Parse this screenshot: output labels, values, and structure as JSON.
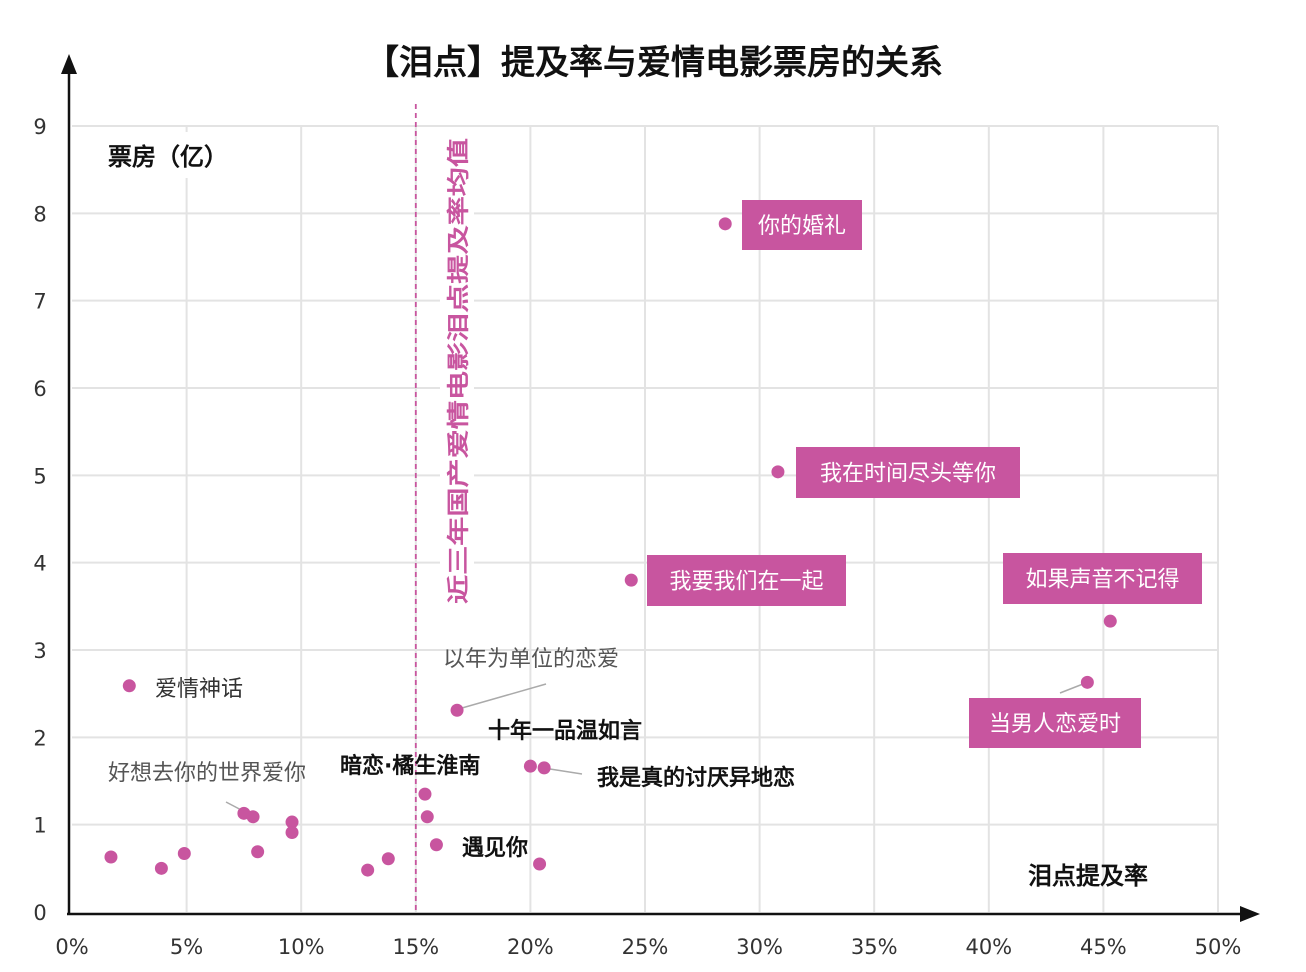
{
  "chart_data": {
    "type": "scatter",
    "title": "【泪点】提及率与爱情电影票房的关系",
    "xlabel": "泪点提及率",
    "ylabel": "票房（亿）",
    "xlim": [
      0,
      50
    ],
    "ylim": [
      0,
      9
    ],
    "x_ticks": [
      "0%",
      "5%",
      "10%",
      "15%",
      "20%",
      "25%",
      "30%",
      "35%",
      "40%",
      "45%",
      "50%"
    ],
    "y_ticks": [
      "0",
      "1",
      "2",
      "3",
      "4",
      "5",
      "6",
      "7",
      "8",
      "9"
    ],
    "grid": true,
    "mean_line": {
      "x": 15.0,
      "label": "近三年国产爱情电影泪点提及率均值"
    },
    "colors": {
      "point": "#c8559f",
      "label_box": "#c8559f",
      "mean_line": "#c8559f"
    },
    "points": [
      {
        "x": 28.5,
        "y": 7.88,
        "label": "你的婚礼"
      },
      {
        "x": 30.8,
        "y": 5.04,
        "label": "我在时间尽头等你"
      },
      {
        "x": 24.4,
        "y": 3.8,
        "label": "我要我们在一起"
      },
      {
        "x": 45.3,
        "y": 3.33,
        "label": "如果声音不记得"
      },
      {
        "x": 44.3,
        "y": 2.63,
        "label": "当男人恋爱时"
      },
      {
        "x": 2.5,
        "y": 2.59,
        "label": "爱情神话"
      },
      {
        "x": 16.8,
        "y": 2.31,
        "label": "以年为单位的恋爱"
      },
      {
        "x": 20.0,
        "y": 1.67,
        "label": "十年一品温如言"
      },
      {
        "x": 20.6,
        "y": 1.65,
        "label": "我是真的讨厌异地恋"
      },
      {
        "x": 7.5,
        "y": 1.13,
        "label": "好想去你的世界爱你"
      },
      {
        "x": 15.4,
        "y": 1.35,
        "label": "暗恋·橘生淮南"
      },
      {
        "x": 15.5,
        "y": 1.09,
        "label": ""
      },
      {
        "x": 15.9,
        "y": 0.77,
        "label": "遇见你"
      },
      {
        "x": 7.9,
        "y": 1.09,
        "label": ""
      },
      {
        "x": 20.4,
        "y": 0.55,
        "label": ""
      },
      {
        "x": 1.7,
        "y": 0.63,
        "label": ""
      },
      {
        "x": 3.9,
        "y": 0.5,
        "label": ""
      },
      {
        "x": 4.9,
        "y": 0.67,
        "label": ""
      },
      {
        "x": 8.1,
        "y": 0.69,
        "label": ""
      },
      {
        "x": 9.6,
        "y": 1.03,
        "label": ""
      },
      {
        "x": 9.6,
        "y": 0.91,
        "label": ""
      },
      {
        "x": 12.9,
        "y": 0.48,
        "label": ""
      },
      {
        "x": 13.8,
        "y": 0.61,
        "label": ""
      }
    ]
  }
}
